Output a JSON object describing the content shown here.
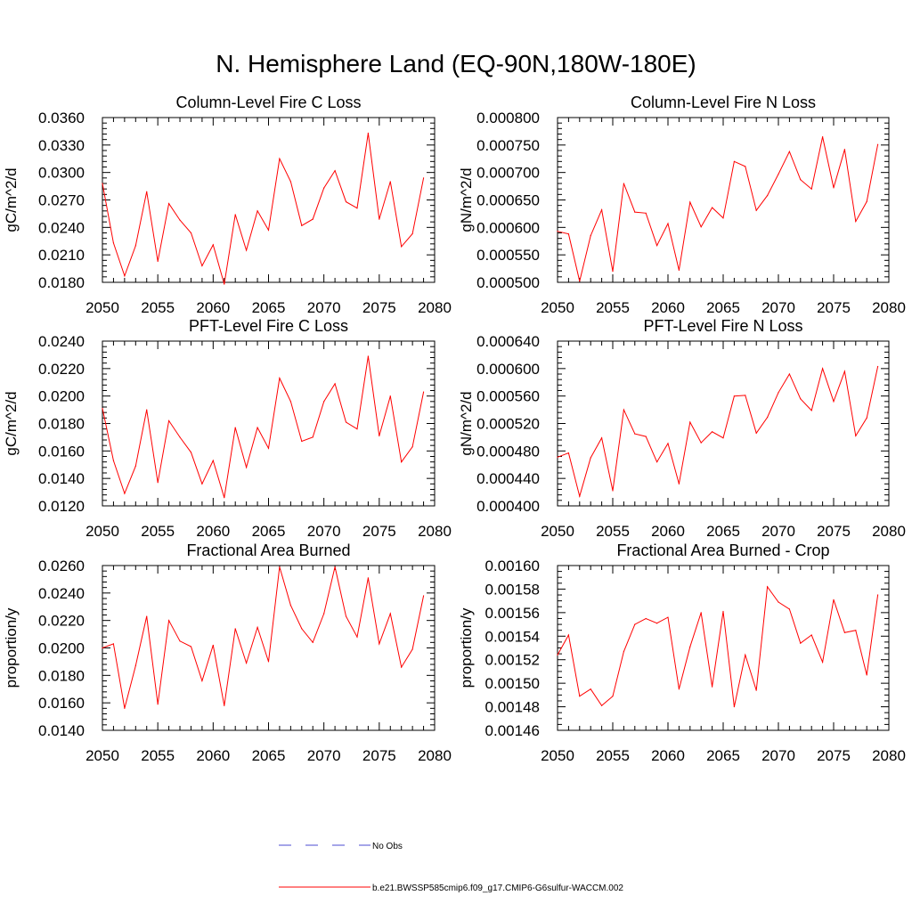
{
  "page_title": "N. Hemisphere Land (EQ-90N,180W-180E)",
  "legend": {
    "entries": [
      {
        "label": "No Obs",
        "color": "#4b4bd0",
        "style": "dashed"
      },
      {
        "label": "b.e21.BWSSP585cmip6.f09_g17.CMIP6-G6sulfur-WACCM.002",
        "color": "#ff0000",
        "style": "solid"
      }
    ]
  },
  "chart_data": [
    {
      "type": "line",
      "title": "Column-Level Fire C Loss",
      "xlabel": "",
      "ylabel": "gC/m^2/d",
      "xlim": [
        2050,
        2080
      ],
      "ylim": [
        0.018,
        0.036
      ],
      "xticks": [
        "2050",
        "2055",
        "2060",
        "2065",
        "2070",
        "2075",
        "2080"
      ],
      "yticks": [
        "0.0180",
        "0.0210",
        "0.0240",
        "0.0270",
        "0.0300",
        "0.0330",
        "0.0360"
      ],
      "x": [
        2050,
        2051,
        2052,
        2053,
        2054,
        2055,
        2056,
        2057,
        2058,
        2059,
        2060,
        2061,
        2062,
        2063,
        2064,
        2065,
        2066,
        2067,
        2068,
        2069,
        2070,
        2071,
        2072,
        2073,
        2074,
        2075,
        2076,
        2077,
        2078,
        2079
      ],
      "series": [
        {
          "color": "#ff0000",
          "values": [
            0.0288,
            0.0223,
            0.0187,
            0.022,
            0.0279,
            0.0203,
            0.0266,
            0.0248,
            0.0234,
            0.0198,
            0.0221,
            0.0178,
            0.0254,
            0.0215,
            0.0258,
            0.0237,
            0.0315,
            0.029,
            0.0242,
            0.0249,
            0.0283,
            0.0302,
            0.0268,
            0.0261,
            0.0343,
            0.0249,
            0.029,
            0.0219,
            0.0233,
            0.0294
          ]
        }
      ]
    },
    {
      "type": "line",
      "title": "Column-Level Fire N Loss",
      "xlabel": "",
      "ylabel": "gN/m^2/d",
      "xlim": [
        2050,
        2080
      ],
      "ylim": [
        0.0005,
        0.0008
      ],
      "xticks": [
        "2050",
        "2055",
        "2060",
        "2065",
        "2070",
        "2075",
        "2080"
      ],
      "yticks": [
        "0.000500",
        "0.000550",
        "0.000600",
        "0.000650",
        "0.000700",
        "0.000750",
        "0.000800"
      ],
      "x": [
        2050,
        2051,
        2052,
        2053,
        2054,
        2055,
        2056,
        2057,
        2058,
        2059,
        2060,
        2061,
        2062,
        2063,
        2064,
        2065,
        2066,
        2067,
        2068,
        2069,
        2070,
        2071,
        2072,
        2073,
        2074,
        2075,
        2076,
        2077,
        2078,
        2079
      ],
      "series": [
        {
          "color": "#ff0000",
          "values": [
            0.000593,
            0.000588,
            0.000502,
            0.000585,
            0.000632,
            0.00052,
            0.00068,
            0.000628,
            0.000626,
            0.000567,
            0.000607,
            0.000522,
            0.000646,
            0.000601,
            0.000636,
            0.000617,
            0.00072,
            0.000711,
            0.000631,
            0.000658,
            0.000697,
            0.000738,
            0.000687,
            0.00067,
            0.000765,
            0.000672,
            0.000742,
            0.000611,
            0.000647,
            0.000751
          ]
        }
      ]
    },
    {
      "type": "line",
      "title": "PFT-Level Fire C Loss",
      "xlabel": "",
      "ylabel": "gC/m^2/d",
      "xlim": [
        2050,
        2080
      ],
      "ylim": [
        0.012,
        0.024
      ],
      "xticks": [
        "2050",
        "2055",
        "2060",
        "2065",
        "2070",
        "2075",
        "2080"
      ],
      "yticks": [
        "0.0120",
        "0.0140",
        "0.0160",
        "0.0180",
        "0.0200",
        "0.0220",
        "0.0240"
      ],
      "x": [
        2050,
        2051,
        2052,
        2053,
        2054,
        2055,
        2056,
        2057,
        2058,
        2059,
        2060,
        2061,
        2062,
        2063,
        2064,
        2065,
        2066,
        2067,
        2068,
        2069,
        2070,
        2071,
        2072,
        2073,
        2074,
        2075,
        2076,
        2077,
        2078,
        2079
      ],
      "series": [
        {
          "color": "#ff0000",
          "values": [
            0.0191,
            0.0153,
            0.0129,
            0.0149,
            0.019,
            0.0137,
            0.0182,
            0.017,
            0.0159,
            0.0136,
            0.0153,
            0.0126,
            0.0177,
            0.0148,
            0.0177,
            0.0162,
            0.0213,
            0.0196,
            0.0167,
            0.017,
            0.0196,
            0.0209,
            0.0181,
            0.0176,
            0.0229,
            0.0171,
            0.02,
            0.0152,
            0.0163,
            0.0203
          ]
        }
      ]
    },
    {
      "type": "line",
      "title": "PFT-Level Fire N Loss",
      "xlabel": "",
      "ylabel": "gN/m^2/d",
      "xlim": [
        2050,
        2080
      ],
      "ylim": [
        0.0004,
        0.00064
      ],
      "xticks": [
        "2050",
        "2055",
        "2060",
        "2065",
        "2070",
        "2075",
        "2080"
      ],
      "yticks": [
        "0.000400",
        "0.000440",
        "0.000480",
        "0.000520",
        "0.000560",
        "0.000600",
        "0.000640"
      ],
      "x": [
        2050,
        2051,
        2052,
        2053,
        2054,
        2055,
        2056,
        2057,
        2058,
        2059,
        2060,
        2061,
        2062,
        2063,
        2064,
        2065,
        2066,
        2067,
        2068,
        2069,
        2070,
        2071,
        2072,
        2073,
        2074,
        2075,
        2076,
        2077,
        2078,
        2079
      ],
      "series": [
        {
          "color": "#ff0000",
          "values": [
            0.000471,
            0.000477,
            0.000414,
            0.00047,
            0.000499,
            0.000422,
            0.00054,
            0.000505,
            0.000501,
            0.000464,
            0.000491,
            0.000432,
            0.000522,
            0.000492,
            0.000508,
            0.000499,
            0.00056,
            0.000561,
            0.000506,
            0.000529,
            0.000565,
            0.000592,
            0.000556,
            0.000539,
            0.0006,
            0.000552,
            0.000596,
            0.000502,
            0.000528,
            0.000603
          ]
        }
      ]
    },
    {
      "type": "line",
      "title": "Fractional Area Burned",
      "xlabel": "",
      "ylabel": "proportion/y",
      "xlim": [
        2050,
        2080
      ],
      "ylim": [
        0.014,
        0.026
      ],
      "xticks": [
        "2050",
        "2055",
        "2060",
        "2065",
        "2070",
        "2075",
        "2080"
      ],
      "yticks": [
        "0.0140",
        "0.0160",
        "0.0180",
        "0.0200",
        "0.0220",
        "0.0240",
        "0.0260"
      ],
      "x": [
        2050,
        2051,
        2052,
        2053,
        2054,
        2055,
        2056,
        2057,
        2058,
        2059,
        2060,
        2061,
        2062,
        2063,
        2064,
        2065,
        2066,
        2067,
        2068,
        2069,
        2070,
        2071,
        2072,
        2073,
        2074,
        2075,
        2076,
        2077,
        2078,
        2079
      ],
      "series": [
        {
          "color": "#ff0000",
          "values": [
            0.02,
            0.0203,
            0.0156,
            0.0187,
            0.0223,
            0.0159,
            0.022,
            0.0205,
            0.0201,
            0.0176,
            0.0202,
            0.0158,
            0.0214,
            0.0189,
            0.0215,
            0.019,
            0.0259,
            0.0231,
            0.0214,
            0.0204,
            0.0225,
            0.0259,
            0.0223,
            0.0208,
            0.0251,
            0.0203,
            0.0225,
            0.0186,
            0.0199,
            0.0238
          ]
        }
      ]
    },
    {
      "type": "line",
      "title": "Fractional Area Burned - Crop",
      "xlabel": "",
      "ylabel": "proportion/y",
      "xlim": [
        2050,
        2080
      ],
      "ylim": [
        0.00146,
        0.0016
      ],
      "xticks": [
        "2050",
        "2055",
        "2060",
        "2065",
        "2070",
        "2075",
        "2080"
      ],
      "yticks": [
        "0.00146",
        "0.00148",
        "0.00150",
        "0.00152",
        "0.00154",
        "0.00156",
        "0.00158",
        "0.00160"
      ],
      "x": [
        2050,
        2051,
        2052,
        2053,
        2054,
        2055,
        2056,
        2057,
        2058,
        2059,
        2060,
        2061,
        2062,
        2063,
        2064,
        2065,
        2066,
        2067,
        2068,
        2069,
        2070,
        2071,
        2072,
        2073,
        2074,
        2075,
        2076,
        2077,
        2078,
        2079
      ],
      "series": [
        {
          "color": "#ff0000",
          "values": [
            0.001524,
            0.001541,
            0.001489,
            0.001495,
            0.001481,
            0.001489,
            0.001527,
            0.00155,
            0.001555,
            0.001551,
            0.001556,
            0.001495,
            0.001531,
            0.00156,
            0.001497,
            0.001561,
            0.00148,
            0.001524,
            0.001494,
            0.001582,
            0.001569,
            0.001563,
            0.001534,
            0.001541,
            0.001518,
            0.001571,
            0.001543,
            0.001545,
            0.001507,
            0.001575
          ]
        }
      ]
    }
  ]
}
